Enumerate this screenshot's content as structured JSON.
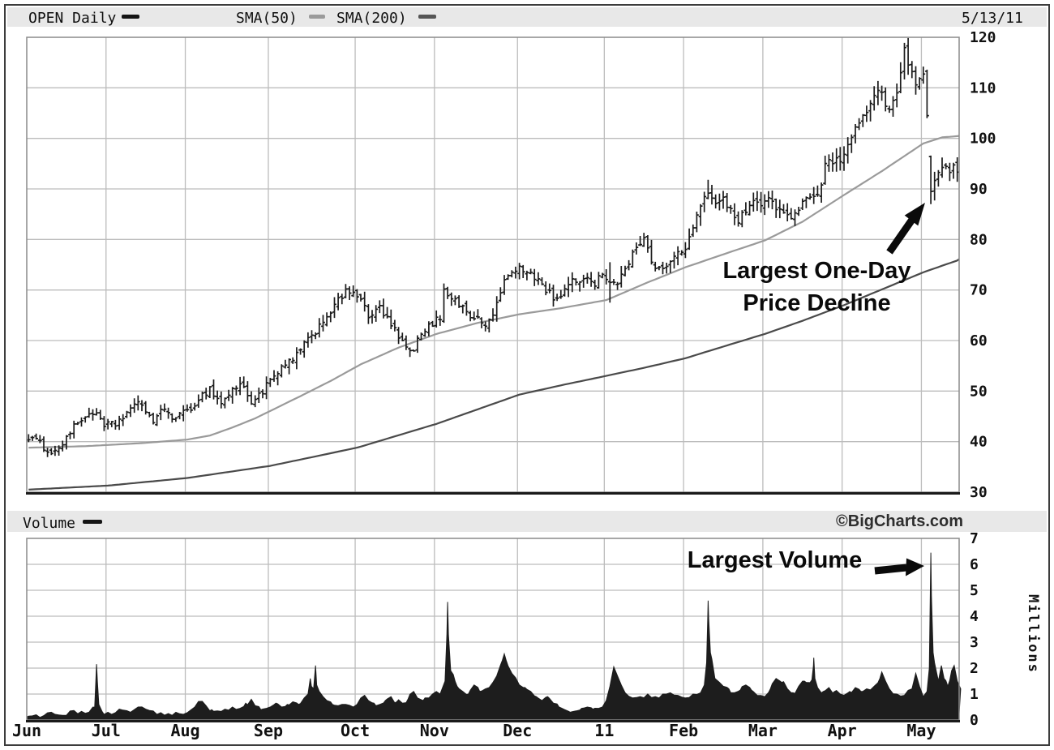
{
  "header": {
    "symbol_series": "OPEN Daily",
    "sma50_label": "SMA(50)",
    "sma200_label": "SMA(200)",
    "date": "5/13/11"
  },
  "volume_header": {
    "label": "Volume",
    "watermark": "©BigCharts.com"
  },
  "annotations": {
    "price_decline_line1": "Largest One-Day",
    "price_decline_line2": "Price Decline",
    "largest_volume": "Largest Volume"
  },
  "colors": {
    "strip_bg": "#e8e8e8",
    "bar": "#1b1b1b",
    "sma50": "#9a9a9a",
    "sma200": "#4a4a4a",
    "grid": "#bcbcbc",
    "panel_border": "#8a8a8a",
    "axis_text": "#111111",
    "volume_fill": "#1d1d1d",
    "annotation": "#0a0a0a"
  },
  "chart_data": {
    "type": "ohlc+volume",
    "symbol": "OPEN",
    "interval": "Daily",
    "as_of": "5/13/11",
    "legend": [
      "OPEN Daily",
      "SMA(50)",
      "SMA(200)"
    ],
    "months": [
      "Jun",
      "Jul",
      "Aug",
      "Sep",
      "Oct",
      "Nov",
      "Dec",
      "11",
      "Feb",
      "Mar",
      "Apr",
      "May"
    ],
    "month_day_counts": [
      21,
      21,
      22,
      23,
      21,
      22,
      23,
      21,
      21,
      21,
      21,
      10
    ],
    "price_axis": {
      "min": 30,
      "max": 120,
      "ticks": [
        30,
        40,
        50,
        60,
        70,
        80,
        90,
        100,
        110,
        120
      ]
    },
    "volume_axis": {
      "min": 0,
      "max": 7,
      "ticks": [
        0,
        1,
        2,
        3,
        4,
        5,
        6,
        7
      ],
      "unit": "Millions"
    },
    "close_anchors": [
      [
        0,
        41
      ],
      [
        3,
        39.5
      ],
      [
        5,
        38.5
      ],
      [
        7,
        37.8
      ],
      [
        10,
        41
      ],
      [
        14,
        44.5
      ],
      [
        17,
        46
      ],
      [
        20,
        43
      ],
      [
        23,
        43.5
      ],
      [
        27,
        46.5
      ],
      [
        30,
        47.5
      ],
      [
        33,
        44
      ],
      [
        36,
        46.5
      ],
      [
        39,
        44.5
      ],
      [
        42,
        46
      ],
      [
        45,
        48.5
      ],
      [
        48,
        50.5
      ],
      [
        51,
        47.5
      ],
      [
        53,
        49.5
      ],
      [
        56,
        51.5
      ],
      [
        59,
        48
      ],
      [
        62,
        50
      ],
      [
        64,
        52
      ],
      [
        68,
        55
      ],
      [
        72,
        58
      ],
      [
        76,
        62
      ],
      [
        80,
        66
      ],
      [
        84,
        69.5
      ],
      [
        86,
        70
      ],
      [
        88,
        68
      ],
      [
        90,
        64.5
      ],
      [
        93,
        66.5
      ],
      [
        96,
        63
      ],
      [
        99,
        59.5
      ],
      [
        101,
        57.5
      ],
      [
        104,
        61
      ],
      [
        107,
        63.5
      ],
      [
        109,
        64.5
      ],
      [
        110,
        70.5
      ],
      [
        112,
        68.5
      ],
      [
        115,
        66.5
      ],
      [
        118,
        64.5
      ],
      [
        121,
        63
      ],
      [
        123,
        65
      ],
      [
        125,
        70
      ],
      [
        127,
        73
      ],
      [
        130,
        74
      ],
      [
        133,
        73.5
      ],
      [
        136,
        71
      ],
      [
        139,
        68.5
      ],
      [
        141,
        69
      ],
      [
        144,
        71.5
      ],
      [
        147,
        72.5
      ],
      [
        150,
        71.5
      ],
      [
        152,
        73.5
      ],
      [
        154,
        71.5
      ],
      [
        156,
        71
      ],
      [
        158,
        74.5
      ],
      [
        161,
        78
      ],
      [
        163,
        81
      ],
      [
        165,
        76
      ],
      [
        167,
        74
      ],
      [
        169,
        74.5
      ],
      [
        171,
        76.5
      ],
      [
        174,
        78.5
      ],
      [
        176,
        82
      ],
      [
        178,
        86.5
      ],
      [
        180,
        89.5
      ],
      [
        182,
        87.5
      ],
      [
        184,
        88.5
      ],
      [
        186,
        85.5
      ],
      [
        188,
        83.5
      ],
      [
        190,
        86
      ],
      [
        192,
        87.5
      ],
      [
        194,
        86.5
      ],
      [
        196,
        88.5
      ],
      [
        198,
        86.5
      ],
      [
        200,
        85
      ],
      [
        202,
        83.5
      ],
      [
        204,
        86.5
      ],
      [
        206,
        89
      ],
      [
        208,
        88
      ],
      [
        210,
        91
      ],
      [
        211,
        95
      ],
      [
        212,
        96.5
      ],
      [
        213,
        94.5
      ],
      [
        214,
        95.5
      ],
      [
        215,
        96
      ],
      [
        216,
        97.5
      ],
      [
        218,
        100.5
      ],
      [
        220,
        103
      ],
      [
        222,
        105.5
      ],
      [
        224,
        108
      ],
      [
        226,
        109.5
      ],
      [
        227,
        106.5
      ],
      [
        228,
        105.8
      ],
      [
        230,
        109
      ],
      [
        231,
        113.5
      ],
      [
        232,
        117.5
      ],
      [
        233,
        114.5
      ],
      [
        235,
        110.5
      ],
      [
        236,
        112.5
      ],
      [
        237,
        112
      ],
      [
        238,
        104.5
      ],
      [
        239,
        89.5
      ],
      [
        240,
        91
      ],
      [
        241,
        92.5
      ],
      [
        243,
        95
      ],
      [
        244,
        93.5
      ],
      [
        245,
        94.5
      ],
      [
        246,
        93
      ]
    ],
    "bar_overrides": {
      "110": {
        "high": 71.3
      },
      "154": {
        "low": 67.5,
        "high": 75.5
      },
      "180": {
        "high": 91.8
      },
      "232": {
        "high": 118.9
      },
      "238": {
        "open": 113.3,
        "high": 113.6,
        "low": 104,
        "close": 104.5
      },
      "239": {
        "open": 96.4,
        "high": 96.6,
        "low": 87,
        "close": 89.5
      }
    },
    "sma50_points": [
      [
        0,
        38.8
      ],
      [
        15,
        39.1
      ],
      [
        30,
        39.7
      ],
      [
        42,
        40.4
      ],
      [
        48,
        41.2
      ],
      [
        54,
        42.8
      ],
      [
        60,
        44.6
      ],
      [
        66,
        46.8
      ],
      [
        72,
        49
      ],
      [
        80,
        52
      ],
      [
        88,
        55.3
      ],
      [
        98,
        58.6
      ],
      [
        108,
        61.3
      ],
      [
        119,
        63.5
      ],
      [
        130,
        65.2
      ],
      [
        141,
        66.4
      ],
      [
        153,
        68
      ],
      [
        164,
        71.5
      ],
      [
        174,
        74.5
      ],
      [
        185,
        77.3
      ],
      [
        195,
        79.8
      ],
      [
        205,
        83.5
      ],
      [
        216,
        88.8
      ],
      [
        226,
        93.5
      ],
      [
        232,
        96.5
      ],
      [
        237,
        99
      ],
      [
        242,
        100.2
      ],
      [
        247,
        100.5
      ]
    ],
    "sma200_points": [
      [
        0,
        30.5
      ],
      [
        21,
        31.3
      ],
      [
        42,
        32.8
      ],
      [
        64,
        35.2
      ],
      [
        87,
        38.8
      ],
      [
        108,
        43.5
      ],
      [
        130,
        49.3
      ],
      [
        142,
        51.3
      ],
      [
        153,
        53
      ],
      [
        163,
        54.6
      ],
      [
        174,
        56.5
      ],
      [
        184,
        58.8
      ],
      [
        195,
        61.3
      ],
      [
        205,
        63.9
      ],
      [
        216,
        67
      ],
      [
        226,
        70.1
      ],
      [
        237,
        73.5
      ],
      [
        247,
        76.1
      ]
    ],
    "volume_profile": [
      [
        0,
        0.15
      ],
      [
        2,
        0.2
      ],
      [
        4,
        0.17
      ],
      [
        6,
        0.3
      ],
      [
        7,
        0.22
      ],
      [
        9,
        0.18
      ],
      [
        11,
        0.35
      ],
      [
        13,
        0.24
      ],
      [
        15,
        0.26
      ],
      [
        16,
        0.3
      ],
      [
        17.5,
        0.5
      ],
      [
        17.8,
        1.5
      ],
      [
        18,
        2.15
      ],
      [
        18.2,
        1.5
      ],
      [
        18.6,
        0.6
      ],
      [
        19.5,
        0.32
      ],
      [
        21,
        0.3
      ],
      [
        23,
        0.28
      ],
      [
        25,
        0.38
      ],
      [
        27,
        0.3
      ],
      [
        29,
        0.5
      ],
      [
        31,
        0.42
      ],
      [
        33,
        0.35
      ],
      [
        35,
        0.28
      ],
      [
        37,
        0.25
      ],
      [
        39,
        0.3
      ],
      [
        41,
        0.22
      ],
      [
        42,
        0.28
      ],
      [
        44,
        0.5
      ],
      [
        46,
        0.72
      ],
      [
        47,
        0.55
      ],
      [
        48.5,
        0.4
      ],
      [
        50,
        0.35
      ],
      [
        52,
        0.42
      ],
      [
        54,
        0.5
      ],
      [
        56,
        0.45
      ],
      [
        57.5,
        0.65
      ],
      [
        59,
        0.8
      ],
      [
        60,
        0.55
      ],
      [
        61.5,
        0.4
      ],
      [
        63,
        0.45
      ],
      [
        64,
        0.5
      ],
      [
        65.5,
        0.65
      ],
      [
        67,
        0.5
      ],
      [
        68.5,
        0.6
      ],
      [
        70,
        0.7
      ],
      [
        71.5,
        0.6
      ],
      [
        73,
        0.85
      ],
      [
        74,
        1
      ],
      [
        74.6,
        1.6
      ],
      [
        74.9,
        1.3
      ],
      [
        75.5,
        1.2
      ],
      [
        76,
        2.1
      ],
      [
        76.3,
        1.35
      ],
      [
        77,
        1.1
      ],
      [
        78,
        0.9
      ],
      [
        79,
        0.75
      ],
      [
        80.5,
        0.6
      ],
      [
        82,
        0.55
      ],
      [
        84,
        0.6
      ],
      [
        86,
        0.5
      ],
      [
        87,
        0.6
      ],
      [
        88,
        0.85
      ],
      [
        89,
        0.95
      ],
      [
        90,
        0.75
      ],
      [
        91.5,
        0.65
      ],
      [
        93,
        0.6
      ],
      [
        94.5,
        0.75
      ],
      [
        96,
        0.9
      ],
      [
        97.5,
        0.7
      ],
      [
        99,
        0.65
      ],
      [
        100.5,
        0.8
      ],
      [
        102,
        1.1
      ],
      [
        103,
        0.85
      ],
      [
        104.5,
        0.75
      ],
      [
        106,
        0.85
      ],
      [
        107,
        1
      ],
      [
        108,
        1.1
      ],
      [
        109,
        1
      ],
      [
        110.3,
        1.5
      ],
      [
        110.8,
        3.3
      ],
      [
        111,
        4.55
      ],
      [
        111.2,
        3.3
      ],
      [
        111.8,
        1.9
      ],
      [
        112.5,
        1.75
      ],
      [
        113.5,
        1.3
      ],
      [
        115,
        1.1
      ],
      [
        116.5,
        1
      ],
      [
        118,
        1.35
      ],
      [
        119.5,
        1.1
      ],
      [
        121,
        1.2
      ],
      [
        122,
        1.25
      ],
      [
        124,
        1.7
      ],
      [
        125.5,
        2.3
      ],
      [
        126,
        2.55
      ],
      [
        126.5,
        2.3
      ],
      [
        128,
        1.8
      ],
      [
        130,
        1.35
      ],
      [
        131.5,
        1.25
      ],
      [
        133,
        1.1
      ],
      [
        134.5,
        0.9
      ],
      [
        136,
        0.75
      ],
      [
        137.5,
        0.9
      ],
      [
        139,
        0.65
      ],
      [
        140.5,
        0.5
      ],
      [
        142,
        0.4
      ],
      [
        143.5,
        0.3
      ],
      [
        145,
        0.35
      ],
      [
        146.5,
        0.45
      ],
      [
        148,
        0.5
      ],
      [
        149.5,
        0.42
      ],
      [
        151,
        0.45
      ],
      [
        152,
        0.5
      ],
      [
        153,
        0.75
      ],
      [
        154,
        1.3
      ],
      [
        155,
        2.05
      ],
      [
        156,
        1.7
      ],
      [
        157,
        1.35
      ],
      [
        158,
        1.05
      ],
      [
        160,
        0.85
      ],
      [
        162,
        0.9
      ],
      [
        164,
        1
      ],
      [
        166,
        0.9
      ],
      [
        168,
        1
      ],
      [
        170,
        1.05
      ],
      [
        172,
        0.95
      ],
      [
        174,
        0.85
      ],
      [
        176,
        1
      ],
      [
        178,
        1.05
      ],
      [
        179,
        1.35
      ],
      [
        179.6,
        2.2
      ],
      [
        179.9,
        3.9
      ],
      [
        180,
        4.6
      ],
      [
        180.15,
        3.9
      ],
      [
        180.6,
        2.6
      ],
      [
        181,
        2.35
      ],
      [
        181.8,
        1.6
      ],
      [
        183,
        1.45
      ],
      [
        184,
        1.3
      ],
      [
        185.5,
        1.2
      ],
      [
        187,
        1.05
      ],
      [
        188.5,
        1.15
      ],
      [
        190,
        1.35
      ],
      [
        191.5,
        1.15
      ],
      [
        193,
        0.95
      ],
      [
        195,
        0.9
      ],
      [
        196.5,
        1.2
      ],
      [
        198,
        1.6
      ],
      [
        199.5,
        1.45
      ],
      [
        201,
        1.2
      ],
      [
        202.5,
        1.05
      ],
      [
        204,
        1.3
      ],
      [
        205.5,
        1.5
      ],
      [
        206,
        1.45
      ],
      [
        207.5,
        1.55
      ],
      [
        207.9,
        2.1
      ],
      [
        208,
        2.4
      ],
      [
        208.3,
        1.6
      ],
      [
        209,
        1.25
      ],
      [
        210.5,
        1.1
      ],
      [
        212,
        1.25
      ],
      [
        213.5,
        1.1
      ],
      [
        215,
        1
      ],
      [
        216,
        0.95
      ],
      [
        217.5,
        1.1
      ],
      [
        219,
        1.25
      ],
      [
        220.5,
        1.1
      ],
      [
        222,
        1.2
      ],
      [
        224,
        1.3
      ],
      [
        225.5,
        1.6
      ],
      [
        226,
        1.85
      ],
      [
        227,
        1.5
      ],
      [
        228,
        1.2
      ],
      [
        230,
        1
      ],
      [
        232,
        0.95
      ],
      [
        234,
        1.2
      ],
      [
        235,
        1.8
      ],
      [
        236,
        1.3
      ],
      [
        237,
        0.9
      ],
      [
        238,
        1.1
      ],
      [
        238.6,
        2
      ],
      [
        238.85,
        4.8
      ],
      [
        239,
        6.45
      ],
      [
        239.15,
        4.8
      ],
      [
        239.6,
        2.6
      ],
      [
        240,
        2.2
      ],
      [
        241,
        1.5
      ],
      [
        241.8,
        2.1
      ],
      [
        242.5,
        1.6
      ],
      [
        243.5,
        1.3
      ],
      [
        244.5,
        1.9
      ],
      [
        245.2,
        2.1
      ],
      [
        246,
        1.5
      ],
      [
        246.9,
        1.2
      ]
    ],
    "key_events": {
      "largest_one_day_price_decline": {
        "day": 239,
        "close_from": 104.5,
        "close_to": 89.5
      },
      "largest_volume": {
        "day": 239,
        "millions": 6.45
      }
    }
  }
}
